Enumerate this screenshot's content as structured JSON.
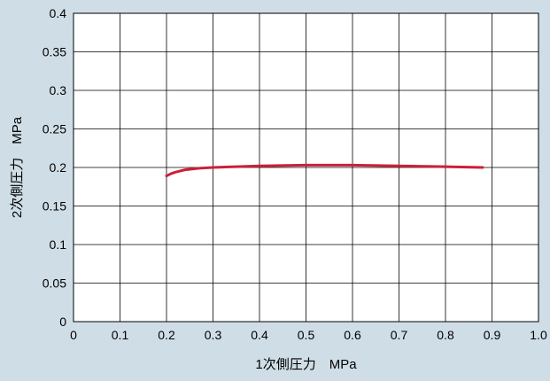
{
  "chart_data": {
    "type": "line",
    "title": "",
    "xlabel": "1次側圧力　MPa",
    "ylabel": "2次側圧力　MPa",
    "xlim": [
      0,
      1.0
    ],
    "ylim": [
      0,
      0.4
    ],
    "xticks": [
      "0",
      "0.1",
      "0.2",
      "0.3",
      "0.4",
      "0.5",
      "0.6",
      "0.7",
      "0.8",
      "0.9",
      "1.0"
    ],
    "yticks": [
      "0",
      "0.05",
      "0.1",
      "0.15",
      "0.2",
      "0.25",
      "0.3",
      "0.35",
      "0.4"
    ],
    "grid": true,
    "series": [
      {
        "color": "#cc1f3a",
        "x": [
          0.2,
          0.21,
          0.22,
          0.24,
          0.27,
          0.3,
          0.35,
          0.4,
          0.5,
          0.6,
          0.7,
          0.8,
          0.88
        ],
        "y": [
          0.189,
          0.192,
          0.194,
          0.197,
          0.199,
          0.2,
          0.201,
          0.202,
          0.203,
          0.203,
          0.202,
          0.201,
          0.2
        ]
      }
    ]
  },
  "colors": {
    "background": "#cfdde6",
    "plot_area": "#ffffff",
    "grid": "#000000",
    "series": "#cc1f3a"
  }
}
